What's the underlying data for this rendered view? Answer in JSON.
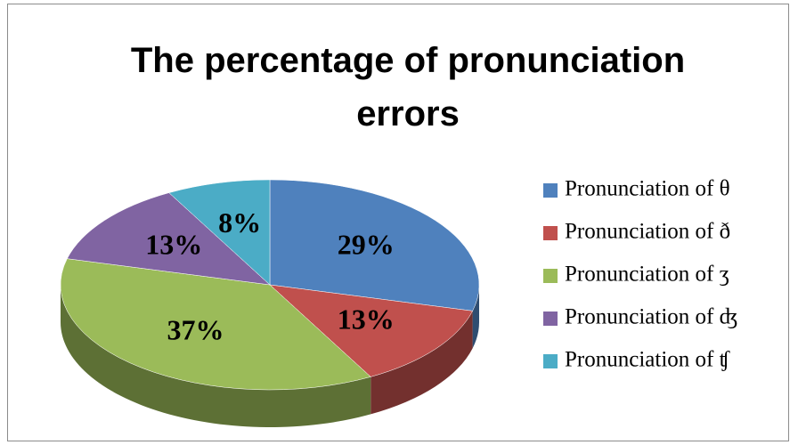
{
  "chart_data": {
    "type": "pie",
    "title": "The percentage of pronunciation errors",
    "categories": [
      "Pronunciation of θ",
      "Pronunciation of ð",
      "Pronunciation of ʒ",
      "Pronunciation of ʤ",
      "Pronunciation of ʧ"
    ],
    "values": [
      29,
      13,
      37,
      13,
      8
    ],
    "value_labels": [
      "29%",
      "13%",
      "37%",
      "13%",
      "8%"
    ],
    "colors": [
      "#4f81bd",
      "#c0504d",
      "#9bbb59",
      "#8064a2",
      "#4bacc6"
    ],
    "legend": "right",
    "3d": true
  }
}
